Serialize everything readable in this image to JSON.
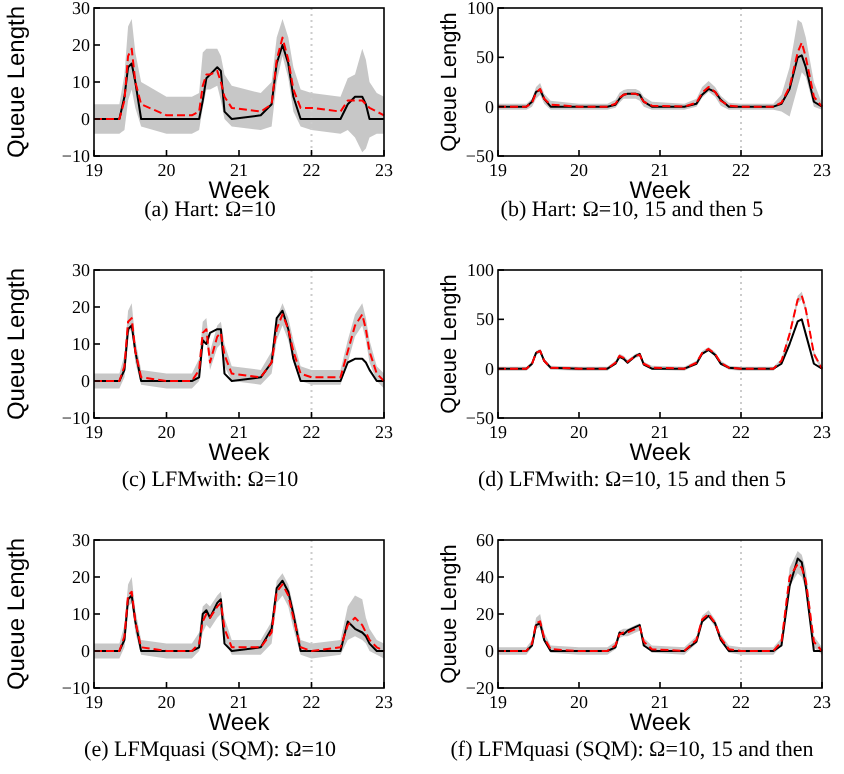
{
  "chart_data": [
    {
      "type": "line",
      "title": "(a) Hart: Ω=10",
      "xlabel": "Week",
      "ylabel": "Queue Length",
      "x": [
        19,
        19.35,
        19.42,
        19.47,
        19.52,
        19.57,
        19.65,
        20,
        20.35,
        20.45,
        20.5,
        20.55,
        20.6,
        20.7,
        20.75,
        20.8,
        20.9,
        21.3,
        21.45,
        21.52,
        21.6,
        21.68,
        21.75,
        21.85,
        22,
        22.4,
        22.5,
        22.6,
        22.7,
        22.75,
        22.8,
        22.9,
        23
      ],
      "xlim": [
        19,
        23
      ],
      "xticks": [
        19,
        20,
        21,
        22,
        23
      ],
      "ylim": [
        -10,
        30
      ],
      "yticks": [
        {
          "value": -10,
          "label": "−10"
        },
        0,
        10,
        20,
        30
      ],
      "series": [
        {
          "color": "#000000",
          "line_style": "solid",
          "values": [
            0,
            0,
            6,
            14,
            15,
            10,
            0,
            0,
            0,
            0,
            5,
            11,
            12,
            14,
            13,
            2,
            0,
            1,
            4,
            15,
            20,
            15,
            6,
            0,
            0,
            0,
            4,
            6,
            6,
            4,
            0,
            0,
            0
          ]
        },
        {
          "color": "#ff0000",
          "line_style": "dashed",
          "values": [
            0,
            0,
            5,
            17,
            19,
            10,
            4,
            1,
            1,
            2,
            9,
            12,
            12,
            13,
            10,
            6,
            3,
            2,
            4,
            16,
            22,
            16,
            8,
            3,
            3,
            2,
            5,
            5,
            5,
            4,
            3,
            2,
            1
          ],
          "lower": [
            -4,
            -4,
            -3,
            5,
            8,
            3,
            -2,
            -4,
            -4,
            -3,
            3,
            8,
            8,
            9,
            5,
            0,
            -2,
            -3,
            -2,
            10,
            17,
            11,
            2,
            -2,
            -3,
            -4,
            -3,
            -5,
            -9,
            -8,
            -5,
            -4,
            -4
          ],
          "upper": [
            4,
            4,
            12,
            25,
            27,
            18,
            10,
            6,
            6,
            7,
            18,
            19,
            19,
            19,
            17,
            12,
            9,
            7,
            10,
            22,
            27,
            22,
            14,
            8,
            7,
            6,
            11,
            12,
            19,
            16,
            10,
            7,
            6
          ]
        }
      ],
      "ref_lines": [
        {
          "axis": "x",
          "value": 22,
          "color": "#cccccc",
          "line_style": "dotted"
        }
      ]
    },
    {
      "type": "line",
      "title": "(b) Hart: Ω=10, 15 and then 5",
      "xlabel": "Week",
      "ylabel": "Queue Length",
      "x": [
        19,
        19.35,
        19.42,
        19.47,
        19.52,
        19.57,
        19.65,
        20,
        20.35,
        20.45,
        20.5,
        20.55,
        20.6,
        20.7,
        20.75,
        20.8,
        20.9,
        21.3,
        21.45,
        21.52,
        21.6,
        21.68,
        21.75,
        21.85,
        22,
        22.4,
        22.5,
        22.6,
        22.7,
        22.75,
        22.8,
        22.9,
        23
      ],
      "xlim": [
        19,
        23
      ],
      "xticks": [
        19,
        20,
        21,
        22,
        23
      ],
      "ylim": [
        -50,
        100
      ],
      "yticks": [
        {
          "value": -50,
          "label": "−50"
        },
        0,
        50,
        100
      ],
      "series": [
        {
          "color": "#000000",
          "line_style": "solid",
          "values": [
            0,
            0,
            5,
            15,
            17,
            8,
            0,
            0,
            0,
            2,
            8,
            12,
            13,
            13,
            12,
            5,
            0,
            0,
            3,
            12,
            18,
            15,
            7,
            0,
            0,
            0,
            3,
            18,
            50,
            52,
            40,
            5,
            0
          ]
        },
        {
          "color": "#ff0000",
          "line_style": "dashed",
          "values": [
            0,
            0,
            4,
            14,
            18,
            8,
            2,
            0,
            0,
            3,
            9,
            12,
            13,
            13,
            11,
            5,
            1,
            0,
            4,
            14,
            20,
            15,
            6,
            1,
            0,
            0,
            4,
            20,
            55,
            65,
            50,
            10,
            0
          ],
          "lower": [
            -3,
            -3,
            0,
            8,
            12,
            3,
            -3,
            -3,
            -3,
            -1,
            4,
            8,
            8,
            8,
            6,
            0,
            -3,
            -3,
            0,
            9,
            15,
            10,
            1,
            -3,
            -3,
            -3,
            -5,
            -10,
            20,
            35,
            30,
            0,
            -3
          ],
          "upper": [
            3,
            3,
            8,
            20,
            24,
            13,
            6,
            3,
            3,
            7,
            14,
            17,
            18,
            18,
            16,
            10,
            5,
            3,
            8,
            20,
            26,
            20,
            11,
            4,
            3,
            3,
            12,
            40,
            88,
            85,
            70,
            25,
            3
          ]
        }
      ],
      "ref_lines": [
        {
          "axis": "x",
          "value": 22,
          "color": "#cccccc",
          "line_style": "dotted"
        }
      ]
    },
    {
      "type": "line",
      "title": "(c) LFMwith: Ω=10",
      "xlabel": "Week",
      "ylabel": "Queue Length",
      "x": [
        19,
        19.35,
        19.42,
        19.47,
        19.52,
        19.57,
        19.65,
        20,
        20.35,
        20.45,
        20.5,
        20.55,
        20.6,
        20.7,
        20.75,
        20.8,
        20.9,
        21.3,
        21.45,
        21.52,
        21.6,
        21.68,
        21.75,
        21.85,
        22,
        22.4,
        22.5,
        22.6,
        22.7,
        22.75,
        22.8,
        22.9,
        23
      ],
      "xlim": [
        19,
        23
      ],
      "xticks": [
        19,
        20,
        21,
        22,
        23
      ],
      "ylim": [
        -10,
        30
      ],
      "yticks": [
        {
          "value": -10,
          "label": "−10"
        },
        0,
        10,
        20,
        30
      ],
      "series": [
        {
          "color": "#000000",
          "line_style": "solid",
          "values": [
            0,
            0,
            3,
            14,
            15,
            8,
            0,
            0,
            0,
            1,
            11,
            10,
            13,
            14,
            14,
            2,
            0,
            1,
            5,
            17,
            19,
            14,
            6,
            0,
            0,
            0,
            5,
            6,
            6,
            5,
            3,
            0,
            0
          ]
        },
        {
          "color": "#ff0000",
          "line_style": "dashed",
          "values": [
            0,
            0,
            4,
            16,
            17,
            8,
            1,
            0,
            0,
            3,
            13,
            14,
            5,
            12,
            13,
            7,
            2,
            1,
            5,
            14,
            18,
            14,
            8,
            2,
            1,
            1,
            8,
            15,
            18,
            14,
            8,
            2,
            0
          ],
          "lower": [
            -2,
            -2,
            1,
            13,
            14,
            5,
            -1,
            -2,
            -2,
            0,
            10,
            11,
            3,
            9,
            10,
            4,
            0,
            -1,
            2,
            11,
            15,
            11,
            5,
            0,
            -1,
            -1,
            5,
            12,
            15,
            11,
            5,
            0,
            -2
          ],
          "upper": [
            2,
            2,
            7,
            19,
            21,
            11,
            3,
            2,
            2,
            6,
            16,
            17,
            8,
            15,
            16,
            10,
            4,
            3,
            8,
            17,
            21,
            17,
            11,
            4,
            3,
            3,
            11,
            18,
            21,
            17,
            11,
            4,
            2
          ]
        }
      ],
      "ref_lines": [
        {
          "axis": "x",
          "value": 22,
          "color": "#cccccc",
          "line_style": "dotted"
        }
      ]
    },
    {
      "type": "line",
      "title": "(d) LFMwith: Ω=10, 15 and then 5",
      "xlabel": "Week",
      "ylabel": "Queue Length",
      "x": [
        19,
        19.35,
        19.42,
        19.47,
        19.52,
        19.57,
        19.65,
        20,
        20.35,
        20.45,
        20.5,
        20.55,
        20.6,
        20.7,
        20.75,
        20.8,
        20.9,
        21.3,
        21.45,
        21.52,
        21.6,
        21.68,
        21.75,
        21.85,
        22,
        22.4,
        22.5,
        22.6,
        22.7,
        22.75,
        22.8,
        22.9,
        23
      ],
      "xlim": [
        19,
        23
      ],
      "xticks": [
        19,
        20,
        21,
        22,
        23
      ],
      "ylim": [
        -50,
        100
      ],
      "yticks": [
        {
          "value": -50,
          "label": "−50"
        },
        0,
        50,
        100
      ],
      "series": [
        {
          "color": "#000000",
          "line_style": "solid",
          "values": [
            0,
            0,
            5,
            16,
            18,
            8,
            1,
            0,
            0,
            5,
            12,
            10,
            6,
            13,
            15,
            4,
            0,
            0,
            5,
            15,
            19,
            14,
            5,
            1,
            0,
            0,
            5,
            25,
            48,
            50,
            35,
            5,
            0
          ]
        },
        {
          "color": "#ff0000",
          "line_style": "dashed",
          "values": [
            0,
            0,
            5,
            16,
            18,
            8,
            1,
            0,
            0,
            6,
            13,
            11,
            7,
            13,
            14,
            5,
            1,
            0,
            6,
            16,
            20,
            15,
            6,
            1,
            0,
            0,
            8,
            35,
            70,
            74,
            60,
            15,
            0
          ],
          "lower": [
            -2,
            -2,
            3,
            14,
            16,
            6,
            -1,
            -2,
            -2,
            4,
            11,
            9,
            5,
            11,
            12,
            3,
            -1,
            -2,
            4,
            14,
            18,
            13,
            4,
            -1,
            -2,
            -2,
            6,
            32,
            66,
            70,
            56,
            12,
            -2
          ],
          "upper": [
            2,
            2,
            7,
            18,
            20,
            10,
            3,
            2,
            2,
            8,
            15,
            13,
            9,
            15,
            16,
            7,
            3,
            2,
            8,
            18,
            22,
            17,
            8,
            3,
            2,
            2,
            10,
            38,
            74,
            78,
            64,
            18,
            2
          ]
        }
      ],
      "ref_lines": [
        {
          "axis": "x",
          "value": 22,
          "color": "#cccccc",
          "line_style": "dotted"
        }
      ]
    },
    {
      "type": "line",
      "title": "(e) LFMquasi (SQM): Ω=10",
      "xlabel": "Week",
      "ylabel": "Queue Length",
      "x": [
        19,
        19.35,
        19.42,
        19.47,
        19.52,
        19.57,
        19.65,
        20,
        20.35,
        20.45,
        20.5,
        20.55,
        20.6,
        20.7,
        20.75,
        20.8,
        20.9,
        21.3,
        21.45,
        21.52,
        21.6,
        21.68,
        21.75,
        21.85,
        22,
        22.4,
        22.5,
        22.6,
        22.7,
        22.75,
        22.8,
        22.9,
        23
      ],
      "xlim": [
        19,
        23
      ],
      "xticks": [
        19,
        20,
        21,
        22,
        23
      ],
      "ylim": [
        -10,
        30
      ],
      "yticks": [
        {
          "value": -10,
          "label": "−10"
        },
        0,
        10,
        20,
        30
      ],
      "series": [
        {
          "color": "#000000",
          "line_style": "solid",
          "values": [
            0,
            0,
            3,
            14,
            15,
            8,
            0,
            0,
            0,
            1,
            10,
            11,
            9,
            13,
            14,
            2,
            0,
            1,
            6,
            17,
            19,
            16,
            10,
            0,
            0,
            0,
            8,
            6,
            5,
            4,
            2,
            0,
            0
          ]
        },
        {
          "color": "#ff0000",
          "line_style": "dashed",
          "values": [
            0,
            0,
            4,
            15,
            16,
            8,
            1,
            0,
            0,
            2,
            8,
            10,
            9,
            12,
            13,
            6,
            1,
            1,
            5,
            16,
            18,
            15,
            9,
            1,
            0,
            1,
            7,
            9,
            7,
            5,
            3,
            1,
            0
          ],
          "lower": [
            -2,
            -2,
            1,
            12,
            13,
            5,
            -1,
            -2,
            -2,
            0,
            5,
            7,
            6,
            9,
            10,
            3,
            -1,
            -1,
            2,
            13,
            15,
            12,
            6,
            -1,
            -2,
            -1,
            3,
            4,
            3,
            2,
            0,
            -1,
            -2
          ],
          "upper": [
            2,
            2,
            7,
            18,
            20,
            11,
            3,
            2,
            2,
            5,
            12,
            13,
            12,
            15,
            16,
            9,
            3,
            3,
            8,
            19,
            21,
            18,
            12,
            3,
            2,
            3,
            12,
            15,
            14,
            9,
            6,
            3,
            2
          ]
        }
      ],
      "ref_lines": [
        {
          "axis": "x",
          "value": 22,
          "color": "#cccccc",
          "line_style": "dotted"
        }
      ]
    },
    {
      "type": "line",
      "title": "(f) LFMquasi (SQM): Ω=10, 15 and then",
      "xlabel": "Week",
      "ylabel": "Queue Length",
      "x": [
        19,
        19.35,
        19.42,
        19.47,
        19.52,
        19.57,
        19.65,
        20,
        20.35,
        20.45,
        20.5,
        20.55,
        20.6,
        20.7,
        20.75,
        20.8,
        20.9,
        21.3,
        21.45,
        21.52,
        21.6,
        21.68,
        21.75,
        21.85,
        22,
        22.4,
        22.5,
        22.6,
        22.7,
        22.75,
        22.8,
        22.9,
        23
      ],
      "xlim": [
        19,
        23
      ],
      "xticks": [
        19,
        20,
        21,
        22,
        23
      ],
      "ylim": [
        -20,
        60
      ],
      "yticks": [
        {
          "value": -20,
          "label": "−20"
        },
        0,
        20,
        40,
        60
      ],
      "series": [
        {
          "color": "#000000",
          "line_style": "solid",
          "values": [
            0,
            0,
            3,
            14,
            15,
            6,
            0,
            0,
            0,
            2,
            10,
            9,
            11,
            13,
            14,
            3,
            0,
            0,
            5,
            16,
            19,
            15,
            6,
            0,
            0,
            0,
            3,
            35,
            50,
            48,
            35,
            0,
            0
          ]
        },
        {
          "color": "#ff0000",
          "line_style": "dashed",
          "values": [
            0,
            0,
            4,
            15,
            16,
            7,
            1,
            0,
            0,
            3,
            9,
            10,
            10,
            12,
            13,
            5,
            1,
            0,
            6,
            17,
            20,
            15,
            7,
            1,
            0,
            0,
            5,
            40,
            47,
            45,
            38,
            5,
            0
          ],
          "lower": [
            -2,
            -2,
            2,
            12,
            13,
            5,
            -1,
            -2,
            -2,
            1,
            7,
            8,
            8,
            10,
            11,
            3,
            -1,
            -2,
            4,
            15,
            18,
            13,
            5,
            -1,
            -2,
            -2,
            3,
            35,
            42,
            40,
            33,
            2,
            -2
          ],
          "upper": [
            2,
            2,
            6,
            18,
            20,
            10,
            3,
            2,
            2,
            5,
            11,
            12,
            12,
            14,
            15,
            7,
            3,
            2,
            8,
            19,
            22,
            17,
            9,
            3,
            2,
            2,
            7,
            45,
            54,
            52,
            44,
            8,
            2
          ]
        }
      ],
      "ref_lines": [
        {
          "axis": "x",
          "value": 22,
          "color": "#cccccc",
          "line_style": "dotted"
        }
      ]
    }
  ]
}
